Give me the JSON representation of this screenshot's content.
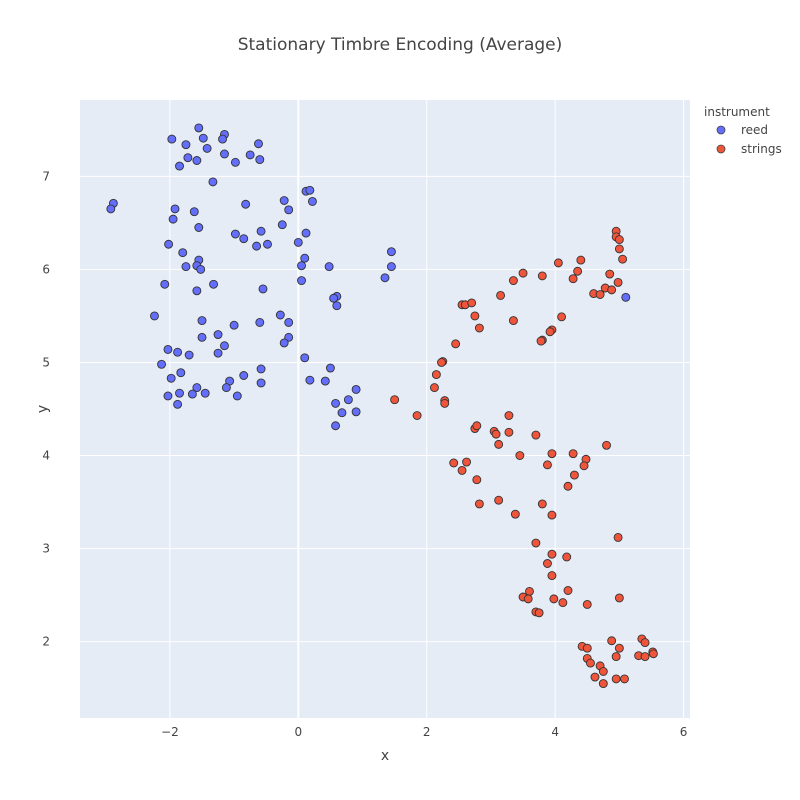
{
  "chart_data": {
    "type": "scatter",
    "title": "Stationary Timbre Encoding (Average)",
    "xlabel": "x",
    "ylabel": "y",
    "xlim": [
      -3.4,
      6.1
    ],
    "ylim": [
      1.18,
      7.82
    ],
    "xticks": [
      -2,
      0,
      2,
      4,
      6
    ],
    "xtick_labels": [
      "−2",
      "0",
      "2",
      "4",
      "6"
    ],
    "yticks": [
      2,
      3,
      4,
      5,
      6,
      7
    ],
    "grid": true,
    "legend": {
      "title": "instrument",
      "placement": "top-right"
    },
    "series": [
      {
        "name": "reed",
        "color": "#636efa",
        "points": [
          [
            -1.55,
            7.52
          ],
          [
            -1.97,
            7.4
          ],
          [
            -1.48,
            7.41
          ],
          [
            -1.15,
            7.45
          ],
          [
            -1.18,
            7.4
          ],
          [
            -0.62,
            7.35
          ],
          [
            -1.75,
            7.34
          ],
          [
            -1.42,
            7.3
          ],
          [
            -1.15,
            7.24
          ],
          [
            -0.75,
            7.23
          ],
          [
            -1.72,
            7.2
          ],
          [
            -1.58,
            7.17
          ],
          [
            -0.6,
            7.18
          ],
          [
            -0.98,
            7.15
          ],
          [
            -1.85,
            7.11
          ],
          [
            -1.33,
            6.94
          ],
          [
            -2.88,
            6.71
          ],
          [
            -2.92,
            6.65
          ],
          [
            -0.82,
            6.7
          ],
          [
            -0.22,
            6.74
          ],
          [
            0.12,
            6.84
          ],
          [
            0.18,
            6.85
          ],
          [
            0.22,
            6.73
          ],
          [
            -1.92,
            6.65
          ],
          [
            -1.62,
            6.62
          ],
          [
            -0.15,
            6.64
          ],
          [
            -1.95,
            6.54
          ],
          [
            -1.55,
            6.45
          ],
          [
            -0.25,
            6.48
          ],
          [
            -0.58,
            6.41
          ],
          [
            -0.98,
            6.38
          ],
          [
            0.12,
            6.39
          ],
          [
            -0.85,
            6.33
          ],
          [
            -2.02,
            6.27
          ],
          [
            -0.65,
            6.25
          ],
          [
            -0.48,
            6.27
          ],
          [
            0.0,
            6.29
          ],
          [
            -1.8,
            6.18
          ],
          [
            1.45,
            6.19
          ],
          [
            0.1,
            6.12
          ],
          [
            -1.55,
            6.1
          ],
          [
            -1.75,
            6.03
          ],
          [
            -1.58,
            6.04
          ],
          [
            -1.52,
            6.0
          ],
          [
            0.05,
            6.04
          ],
          [
            0.48,
            6.03
          ],
          [
            1.45,
            6.03
          ],
          [
            1.35,
            5.91
          ],
          [
            0.05,
            5.88
          ],
          [
            -2.08,
            5.84
          ],
          [
            -1.32,
            5.84
          ],
          [
            -0.55,
            5.79
          ],
          [
            -1.58,
            5.77
          ],
          [
            0.6,
            5.71
          ],
          [
            0.55,
            5.69
          ],
          [
            0.6,
            5.61
          ],
          [
            -2.24,
            5.5
          ],
          [
            -0.28,
            5.51
          ],
          [
            -1.5,
            5.45
          ],
          [
            -0.6,
            5.43
          ],
          [
            -0.15,
            5.43
          ],
          [
            -1.0,
            5.4
          ],
          [
            -1.25,
            5.3
          ],
          [
            -1.5,
            5.27
          ],
          [
            -0.15,
            5.27
          ],
          [
            -0.22,
            5.21
          ],
          [
            -1.15,
            5.18
          ],
          [
            -2.03,
            5.14
          ],
          [
            -1.88,
            5.11
          ],
          [
            -1.7,
            5.08
          ],
          [
            -1.25,
            5.1
          ],
          [
            0.1,
            5.05
          ],
          [
            -2.13,
            4.98
          ],
          [
            0.5,
            4.94
          ],
          [
            -0.58,
            4.93
          ],
          [
            -1.83,
            4.89
          ],
          [
            -0.85,
            4.86
          ],
          [
            -1.98,
            4.83
          ],
          [
            -1.07,
            4.8
          ],
          [
            -0.58,
            4.78
          ],
          [
            0.18,
            4.81
          ],
          [
            0.42,
            4.8
          ],
          [
            -1.12,
            4.73
          ],
          [
            -1.58,
            4.73
          ],
          [
            0.9,
            4.71
          ],
          [
            -1.85,
            4.67
          ],
          [
            -1.65,
            4.66
          ],
          [
            -1.45,
            4.67
          ],
          [
            -0.95,
            4.64
          ],
          [
            -2.03,
            4.64
          ],
          [
            0.78,
            4.6
          ],
          [
            0.58,
            4.56
          ],
          [
            -1.88,
            4.55
          ],
          [
            0.68,
            4.46
          ],
          [
            0.9,
            4.47
          ],
          [
            0.58,
            4.32
          ],
          [
            5.1,
            5.7
          ]
        ]
      },
      {
        "name": "strings",
        "color": "#ef553b",
        "points": [
          [
            4.95,
            6.41
          ],
          [
            4.95,
            6.35
          ],
          [
            5.0,
            6.32
          ],
          [
            5.0,
            6.22
          ],
          [
            5.05,
            6.11
          ],
          [
            4.05,
            6.07
          ],
          [
            4.4,
            6.1
          ],
          [
            4.35,
            5.98
          ],
          [
            3.5,
            5.96
          ],
          [
            3.35,
            5.88
          ],
          [
            3.8,
            5.93
          ],
          [
            4.28,
            5.9
          ],
          [
            4.85,
            5.95
          ],
          [
            4.98,
            5.86
          ],
          [
            4.78,
            5.8
          ],
          [
            4.88,
            5.78
          ],
          [
            4.6,
            5.74
          ],
          [
            4.7,
            5.73
          ],
          [
            3.15,
            5.72
          ],
          [
            2.55,
            5.62
          ],
          [
            2.6,
            5.62
          ],
          [
            2.7,
            5.64
          ],
          [
            4.1,
            5.49
          ],
          [
            2.75,
            5.5
          ],
          [
            3.35,
            5.45
          ],
          [
            2.82,
            5.37
          ],
          [
            3.95,
            5.35
          ],
          [
            3.92,
            5.33
          ],
          [
            3.8,
            5.24
          ],
          [
            3.78,
            5.23
          ],
          [
            2.45,
            5.2
          ],
          [
            2.25,
            5.01
          ],
          [
            2.23,
            5.0
          ],
          [
            2.15,
            4.87
          ],
          [
            2.12,
            4.73
          ],
          [
            1.5,
            4.6
          ],
          [
            2.28,
            4.59
          ],
          [
            2.28,
            4.56
          ],
          [
            1.85,
            4.43
          ],
          [
            3.28,
            4.43
          ],
          [
            2.75,
            4.29
          ],
          [
            2.78,
            4.32
          ],
          [
            3.05,
            4.26
          ],
          [
            3.08,
            4.23
          ],
          [
            3.28,
            4.25
          ],
          [
            3.7,
            4.22
          ],
          [
            3.12,
            4.12
          ],
          [
            4.8,
            4.11
          ],
          [
            3.95,
            4.02
          ],
          [
            4.28,
            4.02
          ],
          [
            3.45,
            4.0
          ],
          [
            4.48,
            3.96
          ],
          [
            2.62,
            3.93
          ],
          [
            2.42,
            3.92
          ],
          [
            3.88,
            3.9
          ],
          [
            4.45,
            3.89
          ],
          [
            2.55,
            3.84
          ],
          [
            4.3,
            3.79
          ],
          [
            2.78,
            3.74
          ],
          [
            4.2,
            3.67
          ],
          [
            2.82,
            3.48
          ],
          [
            3.12,
            3.52
          ],
          [
            3.8,
            3.48
          ],
          [
            3.38,
            3.37
          ],
          [
            3.95,
            3.36
          ],
          [
            4.98,
            3.12
          ],
          [
            3.7,
            3.06
          ],
          [
            3.95,
            2.94
          ],
          [
            4.18,
            2.91
          ],
          [
            3.88,
            2.84
          ],
          [
            3.95,
            2.71
          ],
          [
            3.6,
            2.54
          ],
          [
            4.2,
            2.55
          ],
          [
            3.5,
            2.48
          ],
          [
            3.58,
            2.46
          ],
          [
            3.98,
            2.46
          ],
          [
            5.0,
            2.47
          ],
          [
            4.12,
            2.42
          ],
          [
            4.5,
            2.4
          ],
          [
            3.7,
            2.32
          ],
          [
            3.75,
            2.31
          ],
          [
            5.35,
            2.03
          ],
          [
            5.4,
            1.99
          ],
          [
            4.88,
            2.01
          ],
          [
            4.42,
            1.95
          ],
          [
            4.5,
            1.93
          ],
          [
            5.0,
            1.93
          ],
          [
            5.52,
            1.89
          ],
          [
            5.53,
            1.87
          ],
          [
            5.3,
            1.85
          ],
          [
            5.4,
            1.84
          ],
          [
            4.95,
            1.84
          ],
          [
            4.5,
            1.82
          ],
          [
            4.55,
            1.77
          ],
          [
            4.7,
            1.74
          ],
          [
            4.75,
            1.68
          ],
          [
            4.62,
            1.62
          ],
          [
            4.95,
            1.6
          ],
          [
            5.08,
            1.6
          ],
          [
            4.75,
            1.55
          ]
        ]
      }
    ]
  }
}
